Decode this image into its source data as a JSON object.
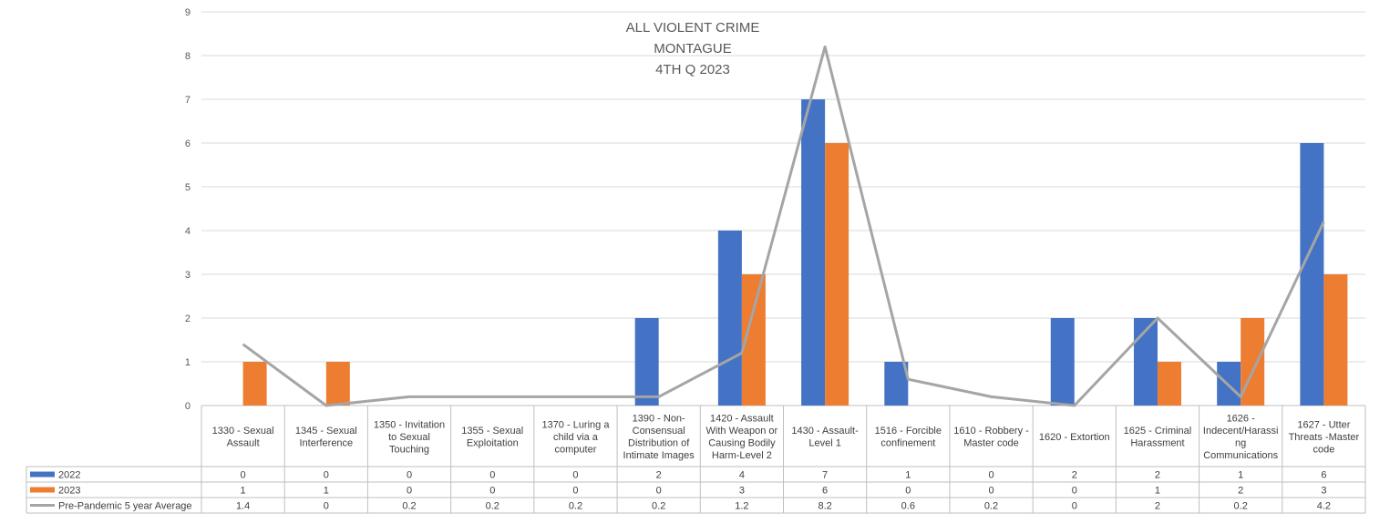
{
  "chart_data": {
    "type": "bar",
    "title": [
      "ALL VIOLENT CRIME",
      "MONTAGUE",
      "4TH Q 2023"
    ],
    "categories": [
      "1330 - Sexual Assault",
      "1345 - Sexual Interference",
      "1350 - Invitation to Sexual Touching",
      "1355 - Sexual Exploitation",
      "1370 - Luring a child via a computer",
      "1390 - Non-Consensual Distribution of Intimate Images",
      "1420 - Assault With Weapon or Causing Bodily Harm-Level 2",
      "1430 - Assault- Level 1",
      "1516 - Forcible confinement",
      "1610 - Robbery - Master code",
      "1620 - Extortion",
      "1625 - Criminal Harassment",
      "1626 - Indecent/Harassing Communications",
      "1627 - Utter Threats -Master code"
    ],
    "category_label_lines": [
      [
        "1330 - Sexual",
        "Assault"
      ],
      [
        "1345 - Sexual",
        "Interference"
      ],
      [
        "1350 - Invitation",
        "to Sexual",
        "Touching"
      ],
      [
        "1355 - Sexual",
        "Exploitation"
      ],
      [
        "1370 - Luring a",
        "child via a",
        "computer"
      ],
      [
        "1390 - Non-",
        "Consensual",
        "Distribution of",
        "Intimate Images"
      ],
      [
        "1420 - Assault",
        "With Weapon or",
        "Causing Bodily",
        "Harm-Level 2"
      ],
      [
        "1430 - Assault-",
        "Level 1"
      ],
      [
        "1516 - Forcible",
        "confinement"
      ],
      [
        "1610 - Robbery -",
        "Master code"
      ],
      [
        "1620 - Extortion"
      ],
      [
        "1625 - Criminal",
        "Harassment"
      ],
      [
        "1626 -",
        "Indecent/Harassi",
        "ng",
        "Communications"
      ],
      [
        "1627 - Utter",
        "Threats -Master",
        "code"
      ]
    ],
    "series": [
      {
        "name": "2022",
        "type": "bar",
        "color": "#4472C4",
        "values": [
          0,
          0,
          0,
          0,
          0,
          2,
          4,
          7,
          1,
          0,
          2,
          2,
          1,
          6
        ],
        "table_values": [
          "0",
          "0",
          "0",
          "0",
          "0",
          "2",
          "4",
          "7",
          "1",
          "0",
          "2",
          "2",
          "1",
          "6"
        ]
      },
      {
        "name": "2023",
        "type": "bar",
        "color": "#ED7D31",
        "values": [
          1,
          1,
          0,
          0,
          0,
          0,
          3,
          6,
          0,
          0,
          0,
          1,
          2,
          3
        ],
        "table_values": [
          "1",
          "1",
          "0",
          "0",
          "0",
          "0",
          "3",
          "6",
          "0",
          "0",
          "0",
          "1",
          "2",
          "3"
        ]
      },
      {
        "name": "Pre-Pandemic 5 year Average",
        "type": "line",
        "color": "#A5A5A5",
        "values": [
          1.4,
          0,
          0.2,
          0.2,
          0.2,
          0.2,
          1.2,
          8.2,
          0.6,
          0.2,
          0,
          2,
          0.2,
          4.2
        ],
        "table_values": [
          "1.4",
          "0",
          "0.2",
          "0.2",
          "0.2",
          "0.2",
          "1.2",
          "8.2",
          "0.6",
          "0.2",
          "0",
          "2",
          "0.2",
          "4.2"
        ]
      }
    ],
    "ylim": [
      0,
      9
    ],
    "yticks": [
      "0",
      "1",
      "2",
      "3",
      "4",
      "5",
      "6",
      "7",
      "8",
      "9"
    ],
    "grid": true,
    "legend": "data-table"
  }
}
